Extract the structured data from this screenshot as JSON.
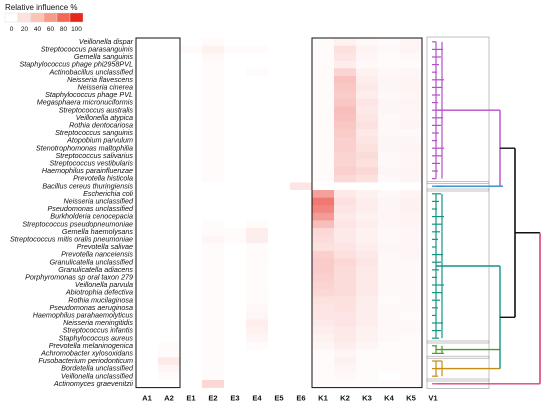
{
  "chart_data": {
    "type": "heatmap",
    "legend": {
      "title": "Relative influence %",
      "ticks": [
        "0",
        "20",
        "40",
        "60",
        "80",
        "100"
      ],
      "colors": [
        "#ffffff",
        "#fde3dc",
        "#fbc5b6",
        "#f89a86",
        "#f26a55",
        "#e8261c"
      ]
    },
    "columns": [
      "A1",
      "A2",
      "E1",
      "E2",
      "E3",
      "E4",
      "E5",
      "E6",
      "K1",
      "K2",
      "K3",
      "K4",
      "K5",
      "V1"
    ],
    "rows": [
      "Veillonella dispar",
      "Streptococcus parasanguinis",
      "Gemella sanguinis",
      "Staphylococcus phage phi2958PVL",
      "Actinobacillus unclassified",
      "Neisseria flavescens",
      "Neisseria cinerea",
      "Staphylococcus phage PVL",
      "Megasphaera micronuciformis",
      "Streptococcus australis",
      "Veillonella atypica",
      "Rothia dentocariosa",
      "Streptococcus sanguinis",
      "Atopobium parvulum",
      "Stenotrophomonas maltophilia",
      "Streptococcus salivarius",
      "Streptococcus vestibularis",
      "Haemophilus parainfluenzae",
      "Prevotella histicola",
      "Bacillus cereus thuringiensis",
      "Escherichia coli",
      "Neisseria unclassified",
      "Pseudomonas unclassified",
      "Burkholderia cenocepacia",
      "Streptococcus pseudopneumoniae",
      "Gemella haemolysans",
      "Streptococcus mitis oralis pneumoniae",
      "Prevotella salivae",
      "Prevotella nanceiensis",
      "Granulicatella unclassified",
      "Granulicatella adiacens",
      "Porphyromonas sp oral taxon 279",
      "Veillonella parvula",
      "Abiotrophia defectiva",
      "Rothia mucilaginosa",
      "Pseudomonas aeruginosa",
      "Haemophilus parahaemolyticus",
      "Neisseria meningitidis",
      "Streptococcus infantis",
      "Staphylococcus aureus",
      "Prevotella melaninogenica",
      "Achromobacter xylosoxidans",
      "Fusobacterium periodonticum",
      "Bordetella unclassified",
      "Veillonella unclassified",
      "Actinomyces graevenitzii"
    ],
    "values": [
      [
        0,
        0,
        0,
        2,
        0,
        0,
        0,
        0,
        2,
        6,
        3,
        2,
        4,
        0
      ],
      [
        0,
        0,
        2,
        6,
        2,
        2,
        0,
        0,
        2,
        14,
        5,
        3,
        5,
        0
      ],
      [
        0,
        0,
        0,
        3,
        0,
        0,
        0,
        0,
        2,
        12,
        4,
        2,
        3,
        0
      ],
      [
        0,
        0,
        0,
        2,
        0,
        0,
        0,
        0,
        2,
        8,
        3,
        2,
        2,
        0
      ],
      [
        0,
        0,
        0,
        2,
        0,
        2,
        0,
        0,
        2,
        20,
        6,
        3,
        4,
        0
      ],
      [
        0,
        0,
        0,
        2,
        0,
        0,
        0,
        0,
        2,
        28,
        8,
        4,
        5,
        0
      ],
      [
        0,
        0,
        0,
        2,
        0,
        0,
        0,
        0,
        2,
        26,
        10,
        4,
        5,
        0
      ],
      [
        0,
        0,
        0,
        2,
        0,
        0,
        0,
        0,
        2,
        24,
        8,
        3,
        4,
        0
      ],
      [
        0,
        0,
        0,
        2,
        0,
        0,
        0,
        0,
        2,
        26,
        12,
        4,
        5,
        0
      ],
      [
        0,
        0,
        0,
        2,
        0,
        0,
        0,
        0,
        2,
        30,
        10,
        4,
        4,
        0
      ],
      [
        0,
        0,
        0,
        2,
        0,
        0,
        0,
        0,
        2,
        28,
        12,
        3,
        4,
        0
      ],
      [
        0,
        0,
        0,
        2,
        0,
        0,
        0,
        0,
        2,
        26,
        14,
        3,
        5,
        0
      ],
      [
        0,
        0,
        0,
        2,
        0,
        0,
        0,
        0,
        2,
        24,
        10,
        3,
        3,
        0
      ],
      [
        0,
        0,
        0,
        2,
        0,
        0,
        0,
        0,
        2,
        22,
        12,
        4,
        4,
        0
      ],
      [
        0,
        0,
        0,
        2,
        0,
        0,
        0,
        0,
        2,
        22,
        14,
        4,
        5,
        0
      ],
      [
        0,
        0,
        0,
        2,
        0,
        0,
        0,
        0,
        2,
        20,
        16,
        3,
        4,
        0
      ],
      [
        0,
        0,
        0,
        2,
        0,
        0,
        0,
        0,
        2,
        20,
        14,
        3,
        4,
        0
      ],
      [
        0,
        0,
        0,
        2,
        0,
        0,
        0,
        0,
        2,
        22,
        18,
        4,
        5,
        0
      ],
      [
        0,
        0,
        0,
        2,
        0,
        0,
        0,
        0,
        2,
        18,
        14,
        3,
        4,
        0
      ],
      [
        0,
        0,
        0,
        0,
        0,
        0,
        0,
        12,
        0,
        0,
        0,
        0,
        0,
        0
      ],
      [
        0,
        0,
        0,
        0,
        0,
        0,
        0,
        0,
        44,
        10,
        6,
        3,
        5,
        0
      ],
      [
        0,
        0,
        0,
        0,
        0,
        0,
        0,
        0,
        62,
        14,
        8,
        4,
        6,
        0
      ],
      [
        0,
        0,
        0,
        0,
        0,
        0,
        0,
        0,
        56,
        12,
        8,
        4,
        6,
        0
      ],
      [
        0,
        0,
        0,
        0,
        0,
        0,
        0,
        0,
        46,
        10,
        6,
        4,
        5,
        0
      ],
      [
        0,
        0,
        0,
        2,
        0,
        2,
        0,
        0,
        30,
        12,
        8,
        4,
        5,
        0
      ],
      [
        0,
        0,
        0,
        2,
        2,
        8,
        0,
        0,
        18,
        10,
        6,
        3,
        4,
        0
      ],
      [
        0,
        0,
        0,
        4,
        2,
        8,
        0,
        0,
        16,
        10,
        6,
        3,
        4,
        0
      ],
      [
        0,
        0,
        0,
        2,
        0,
        2,
        0,
        0,
        14,
        12,
        8,
        4,
        4,
        0
      ],
      [
        0,
        0,
        0,
        2,
        0,
        2,
        0,
        0,
        22,
        14,
        10,
        3,
        4,
        0
      ],
      [
        0,
        0,
        0,
        2,
        0,
        2,
        0,
        0,
        24,
        18,
        12,
        3,
        3,
        0
      ],
      [
        0,
        0,
        0,
        2,
        0,
        2,
        0,
        0,
        24,
        16,
        10,
        3,
        3,
        0
      ],
      [
        0,
        0,
        0,
        2,
        0,
        2,
        0,
        0,
        22,
        16,
        10,
        3,
        3,
        0
      ],
      [
        0,
        0,
        0,
        2,
        0,
        2,
        0,
        0,
        20,
        16,
        10,
        3,
        3,
        0
      ],
      [
        0,
        0,
        0,
        2,
        0,
        2,
        0,
        0,
        18,
        16,
        10,
        3,
        3,
        0
      ],
      [
        0,
        0,
        0,
        2,
        0,
        2,
        0,
        0,
        14,
        14,
        8,
        2,
        3,
        0
      ],
      [
        0,
        0,
        0,
        2,
        0,
        3,
        0,
        0,
        12,
        14,
        8,
        3,
        3,
        0
      ],
      [
        0,
        0,
        0,
        2,
        0,
        4,
        0,
        0,
        12,
        12,
        8,
        3,
        2,
        0
      ],
      [
        0,
        0,
        0,
        2,
        0,
        8,
        0,
        0,
        10,
        12,
        8,
        3,
        3,
        0
      ],
      [
        0,
        0,
        0,
        2,
        0,
        6,
        0,
        0,
        8,
        10,
        6,
        3,
        3,
        0
      ],
      [
        0,
        0,
        0,
        2,
        0,
        4,
        0,
        0,
        6,
        10,
        6,
        3,
        2,
        0
      ],
      [
        0,
        2,
        0,
        2,
        0,
        2,
        0,
        0,
        4,
        8,
        4,
        2,
        2,
        0
      ],
      [
        0,
        2,
        0,
        2,
        0,
        0,
        0,
        0,
        2,
        4,
        2,
        2,
        2,
        0
      ],
      [
        0,
        10,
        0,
        2,
        0,
        0,
        0,
        0,
        2,
        6,
        2,
        2,
        2,
        0
      ],
      [
        0,
        4,
        0,
        2,
        0,
        0,
        0,
        0,
        2,
        4,
        2,
        2,
        2,
        0
      ],
      [
        0,
        2,
        0,
        2,
        0,
        0,
        0,
        0,
        2,
        3,
        2,
        0,
        2,
        0
      ],
      [
        0,
        0,
        0,
        18,
        0,
        0,
        0,
        0,
        2,
        2,
        2,
        2,
        2,
        0
      ]
    ],
    "dendrogram_cluster_colors": [
      "#b54fc8",
      "#2b88c6",
      "#149483",
      "#4a9a2a",
      "#c98a16",
      "#d9456f",
      "#111111"
    ]
  }
}
